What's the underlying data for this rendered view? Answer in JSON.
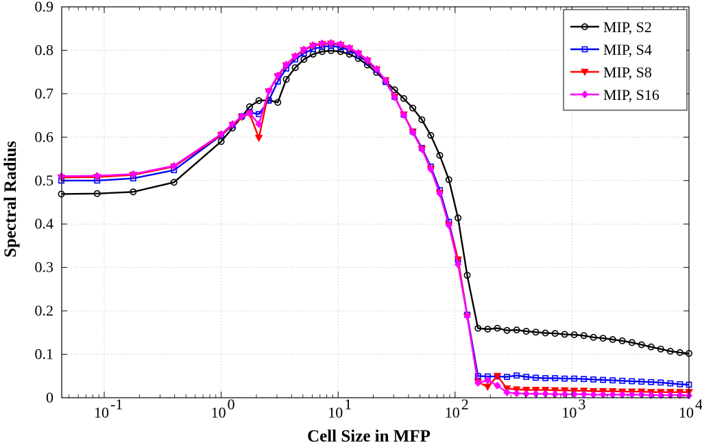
{
  "chart_data": {
    "type": "line",
    "title": "",
    "xlabel": "Cell Size in MFP",
    "ylabel": "Spectral Radius",
    "xscale": "log",
    "xlim": [
      0.0433,
      10000
    ],
    "ylim": [
      0,
      0.9
    ],
    "grid": true,
    "legend_position": "top-right",
    "x_ticks": [
      {
        "value": 0.1,
        "base": "10",
        "exp": "-1"
      },
      {
        "value": 1,
        "base": "10",
        "exp": "0"
      },
      {
        "value": 10,
        "base": "10",
        "exp": "1"
      },
      {
        "value": 100,
        "base": "10",
        "exp": "2"
      },
      {
        "value": 1000,
        "base": "10",
        "exp": "3"
      },
      {
        "value": 10000,
        "base": "10",
        "exp": "4"
      }
    ],
    "y_ticks": [
      "0",
      "0.1",
      "0.2",
      "0.3",
      "0.4",
      "0.5",
      "0.6",
      "0.7",
      "0.8",
      "0.9"
    ],
    "series": [
      {
        "name": "MIP, S2",
        "color": "#000000",
        "marker": "circle",
        "points": [
          [
            0.043,
            0.469
          ],
          [
            0.087,
            0.47
          ],
          [
            0.177,
            0.474
          ],
          [
            0.395,
            0.496
          ],
          [
            1.0,
            0.59
          ],
          [
            1.25,
            0.621
          ],
          [
            1.5,
            0.647
          ],
          [
            1.75,
            0.67
          ],
          [
            2.1,
            0.684
          ],
          [
            2.55,
            0.685
          ],
          [
            3.05,
            0.68
          ],
          [
            3.6,
            0.733
          ],
          [
            4.3,
            0.76
          ],
          [
            5.1,
            0.779
          ],
          [
            6.1,
            0.791
          ],
          [
            7.3,
            0.797
          ],
          [
            8.7,
            0.799
          ],
          [
            10.5,
            0.797
          ],
          [
            12.5,
            0.791
          ],
          [
            14.9,
            0.781
          ],
          [
            17.8,
            0.766
          ],
          [
            21.3,
            0.749
          ],
          [
            25.5,
            0.728
          ],
          [
            30.4,
            0.709
          ],
          [
            36.4,
            0.689
          ],
          [
            43.5,
            0.667
          ],
          [
            52.0,
            0.64
          ],
          [
            62.0,
            0.604
          ],
          [
            74.0,
            0.558
          ],
          [
            88.5,
            0.502
          ],
          [
            106,
            0.414
          ],
          [
            127,
            0.282
          ],
          [
            157,
            0.16
          ],
          [
            190,
            0.158
          ],
          [
            230,
            0.16
          ],
          [
            278,
            0.155
          ],
          [
            336,
            0.156
          ],
          [
            406,
            0.153
          ],
          [
            490,
            0.151
          ],
          [
            592,
            0.149
          ],
          [
            716,
            0.148
          ],
          [
            865,
            0.146
          ],
          [
            1045,
            0.145
          ],
          [
            1262,
            0.143
          ],
          [
            1525,
            0.139
          ],
          [
            1843,
            0.137
          ],
          [
            2227,
            0.134
          ],
          [
            2691,
            0.131
          ],
          [
            3251,
            0.127
          ],
          [
            3928,
            0.122
          ],
          [
            4746,
            0.117
          ],
          [
            5735,
            0.112
          ],
          [
            6929,
            0.107
          ],
          [
            8373,
            0.104
          ],
          [
            10000,
            0.102
          ]
        ]
      },
      {
        "name": "MIP, S4",
        "color": "#0000ff",
        "marker": "square",
        "points": [
          [
            0.043,
            0.5
          ],
          [
            0.087,
            0.5
          ],
          [
            0.177,
            0.505
          ],
          [
            0.395,
            0.524
          ],
          [
            1.0,
            0.604
          ],
          [
            1.25,
            0.627
          ],
          [
            1.5,
            0.648
          ],
          [
            1.75,
            0.657
          ],
          [
            2.1,
            0.653
          ],
          [
            2.55,
            0.684
          ],
          [
            3.05,
            0.728
          ],
          [
            3.6,
            0.758
          ],
          [
            4.3,
            0.779
          ],
          [
            5.1,
            0.793
          ],
          [
            6.1,
            0.803
          ],
          [
            7.3,
            0.808
          ],
          [
            8.7,
            0.81
          ],
          [
            10.5,
            0.807
          ],
          [
            12.5,
            0.8
          ],
          [
            14.9,
            0.788
          ],
          [
            17.8,
            0.773
          ],
          [
            21.3,
            0.755
          ],
          [
            25.5,
            0.727
          ],
          [
            30.4,
            0.693
          ],
          [
            36.4,
            0.652
          ],
          [
            43.5,
            0.613
          ],
          [
            52.0,
            0.575
          ],
          [
            62.0,
            0.532
          ],
          [
            74.0,
            0.478
          ],
          [
            88.5,
            0.405
          ],
          [
            106,
            0.318
          ],
          [
            127,
            0.191
          ],
          [
            157,
            0.05
          ],
          [
            190,
            0.049
          ],
          [
            230,
            0.049
          ],
          [
            278,
            0.048
          ],
          [
            336,
            0.051
          ],
          [
            406,
            0.048
          ],
          [
            490,
            0.046
          ],
          [
            592,
            0.045
          ],
          [
            716,
            0.045
          ],
          [
            865,
            0.044
          ],
          [
            1045,
            0.044
          ],
          [
            1262,
            0.043
          ],
          [
            1525,
            0.042
          ],
          [
            1843,
            0.041
          ],
          [
            2227,
            0.04
          ],
          [
            2691,
            0.039
          ],
          [
            3251,
            0.038
          ],
          [
            3928,
            0.037
          ],
          [
            4746,
            0.036
          ],
          [
            5735,
            0.035
          ],
          [
            6929,
            0.033
          ],
          [
            8373,
            0.031
          ],
          [
            10000,
            0.03
          ]
        ]
      },
      {
        "name": "MIP, S8",
        "color": "#ff0000",
        "marker": "triangle-down",
        "points": [
          [
            0.043,
            0.507
          ],
          [
            0.087,
            0.508
          ],
          [
            0.177,
            0.513
          ],
          [
            0.395,
            0.532
          ],
          [
            1.0,
            0.605
          ],
          [
            1.25,
            0.628
          ],
          [
            1.5,
            0.646
          ],
          [
            1.75,
            0.654
          ],
          [
            2.1,
            0.598
          ],
          [
            2.55,
            0.705
          ],
          [
            3.05,
            0.74
          ],
          [
            3.6,
            0.765
          ],
          [
            4.3,
            0.785
          ],
          [
            5.1,
            0.8
          ],
          [
            6.1,
            0.81
          ],
          [
            7.3,
            0.814
          ],
          [
            8.7,
            0.815
          ],
          [
            10.5,
            0.812
          ],
          [
            12.5,
            0.804
          ],
          [
            14.9,
            0.792
          ],
          [
            17.8,
            0.776
          ],
          [
            21.3,
            0.756
          ],
          [
            25.5,
            0.731
          ],
          [
            30.4,
            0.693
          ],
          [
            36.4,
            0.652
          ],
          [
            43.5,
            0.612
          ],
          [
            52.0,
            0.573
          ],
          [
            62.0,
            0.527
          ],
          [
            74.0,
            0.471
          ],
          [
            88.5,
            0.398
          ],
          [
            106,
            0.318
          ],
          [
            127,
            0.187
          ],
          [
            157,
            0.036
          ],
          [
            190,
            0.025
          ],
          [
            230,
            0.05
          ],
          [
            278,
            0.021
          ],
          [
            336,
            0.019
          ],
          [
            406,
            0.018
          ],
          [
            490,
            0.018
          ],
          [
            592,
            0.018
          ],
          [
            716,
            0.017
          ],
          [
            865,
            0.017
          ],
          [
            1045,
            0.016
          ],
          [
            1262,
            0.016
          ],
          [
            1525,
            0.015
          ],
          [
            1843,
            0.015
          ],
          [
            2227,
            0.015
          ],
          [
            2691,
            0.014
          ],
          [
            3251,
            0.014
          ],
          [
            3928,
            0.014
          ],
          [
            4746,
            0.013
          ],
          [
            5735,
            0.013
          ],
          [
            6929,
            0.013
          ],
          [
            8373,
            0.013
          ],
          [
            10000,
            0.013
          ]
        ]
      },
      {
        "name": "MIP, S16",
        "color": "#ff00ff",
        "marker": "diamond",
        "points": [
          [
            0.043,
            0.51
          ],
          [
            0.087,
            0.511
          ],
          [
            0.177,
            0.515
          ],
          [
            0.395,
            0.534
          ],
          [
            1.0,
            0.607
          ],
          [
            1.25,
            0.63
          ],
          [
            1.5,
            0.648
          ],
          [
            1.75,
            0.655
          ],
          [
            2.1,
            0.63
          ],
          [
            2.55,
            0.706
          ],
          [
            3.05,
            0.742
          ],
          [
            3.6,
            0.767
          ],
          [
            4.3,
            0.787
          ],
          [
            5.1,
            0.802
          ],
          [
            6.1,
            0.812
          ],
          [
            7.3,
            0.816
          ],
          [
            8.7,
            0.817
          ],
          [
            10.5,
            0.814
          ],
          [
            12.5,
            0.806
          ],
          [
            14.9,
            0.794
          ],
          [
            17.8,
            0.778
          ],
          [
            21.3,
            0.757
          ],
          [
            25.5,
            0.73
          ],
          [
            30.4,
            0.692
          ],
          [
            36.4,
            0.651
          ],
          [
            43.5,
            0.611
          ],
          [
            52.0,
            0.572
          ],
          [
            62.0,
            0.526
          ],
          [
            74.0,
            0.47
          ],
          [
            88.5,
            0.397
          ],
          [
            106,
            0.307
          ],
          [
            127,
            0.188
          ],
          [
            157,
            0.034
          ],
          [
            190,
            0.04
          ],
          [
            230,
            0.028
          ],
          [
            278,
            0.012
          ],
          [
            336,
            0.01
          ],
          [
            406,
            0.009
          ],
          [
            490,
            0.009
          ],
          [
            592,
            0.009
          ],
          [
            716,
            0.008
          ],
          [
            865,
            0.008
          ],
          [
            1045,
            0.008
          ],
          [
            1262,
            0.008
          ],
          [
            1525,
            0.007
          ],
          [
            1843,
            0.007
          ],
          [
            2227,
            0.007
          ],
          [
            2691,
            0.007
          ],
          [
            3251,
            0.007
          ],
          [
            3928,
            0.007
          ],
          [
            4746,
            0.006
          ],
          [
            5735,
            0.006
          ],
          [
            6929,
            0.006
          ],
          [
            8373,
            0.006
          ],
          [
            10000,
            0.005
          ]
        ]
      }
    ]
  }
}
